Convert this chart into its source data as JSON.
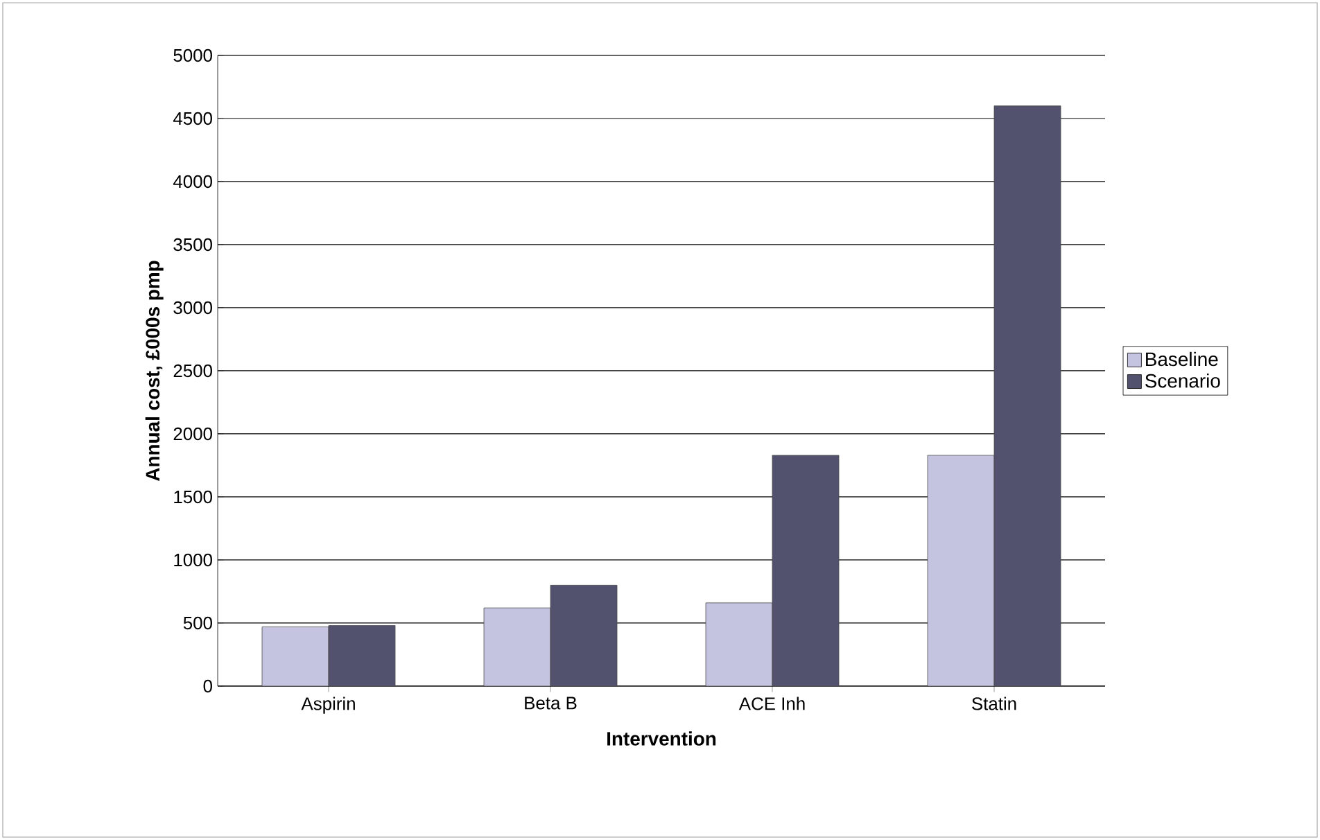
{
  "chart_data": {
    "type": "bar",
    "xlabel": "Intervention",
    "ylabel": "Annual cost, £000s pmp",
    "categories": [
      "Aspirin",
      "Beta B",
      "ACE Inh",
      "Statin"
    ],
    "series": [
      {
        "name": "Baseline",
        "color": "#c4c4e0",
        "values": [
          470,
          620,
          660,
          1830
        ]
      },
      {
        "name": "Scenario",
        "color": "#52526e",
        "values": [
          480,
          800,
          1830,
          4600
        ]
      }
    ],
    "ylim": [
      0,
      5000
    ],
    "yticks": [
      0,
      500,
      1000,
      1500,
      2000,
      2500,
      3000,
      3500,
      4000,
      4500,
      5000
    ],
    "grid": "y",
    "legend": "right"
  }
}
